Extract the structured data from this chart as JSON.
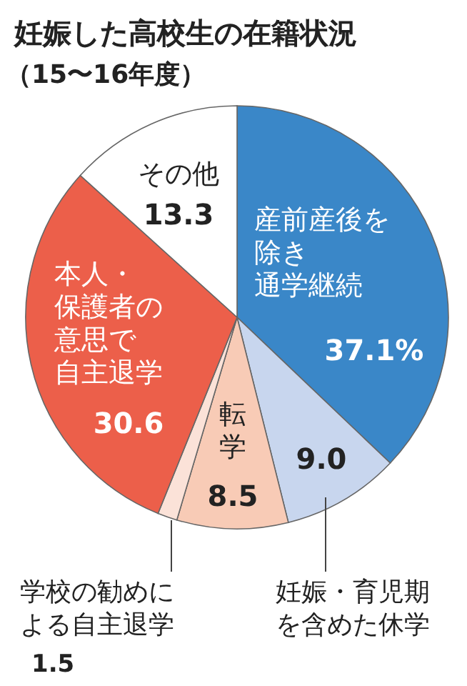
{
  "chart_data": {
    "type": "pie",
    "title": "妊娠した高校生の在籍状況",
    "subtitle": "（15〜16年度）",
    "categories": [
      "産前産後を除き通学継続",
      "妊娠・育児期を含めた休学",
      "転学",
      "学校の勧めによる自主退学",
      "本人・保護者の意思で自主退学",
      "その他"
    ],
    "values": [
      37.1,
      9.0,
      8.5,
      1.5,
      30.6,
      13.3
    ],
    "value_labels": [
      "37.1%",
      "9.0",
      "8.5",
      "1.5",
      "30.6",
      "13.3"
    ],
    "colors": [
      "#3a87c8",
      "#c8d6ee",
      "#f8cbb6",
      "#fbe2d8",
      "#ec5f4a",
      "#ffffff"
    ]
  }
}
